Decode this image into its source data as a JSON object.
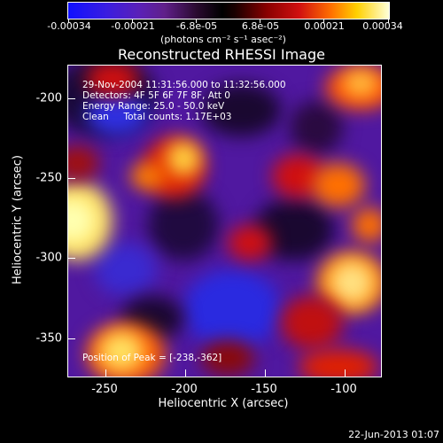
{
  "colorbar": {
    "ticks": [
      "-0.00034",
      "-0.00021",
      "-6.8e-05",
      "6.8e-05",
      "0.00021",
      "0.00034"
    ],
    "unit": "(photons cm⁻² s⁻¹ asec⁻²)"
  },
  "title": "Reconstructed RHESSI Image",
  "annotations": {
    "time_range": "29-Nov-2004 11:31:56.000 to 11:32:56.000",
    "detectors": "Detectors: 4F 5F 6F 7F 8F, Att 0",
    "energy": "Energy Range: 25.0 - 50.0 keV",
    "clean": "Clean     Total counts: 1.17E+03",
    "peak": "Position of Peak = [-238,-362]"
  },
  "axes": {
    "x_title": "Heliocentric X (arcsec)",
    "y_title": "Heliocentric Y (arcsec)",
    "x_ticks": [
      "-250",
      "-200",
      "-150",
      "-100"
    ],
    "y_ticks": [
      "-200",
      "-250",
      "-300",
      "-350"
    ]
  },
  "footer": {
    "date": "22-Jun-2013 01:07"
  }
}
